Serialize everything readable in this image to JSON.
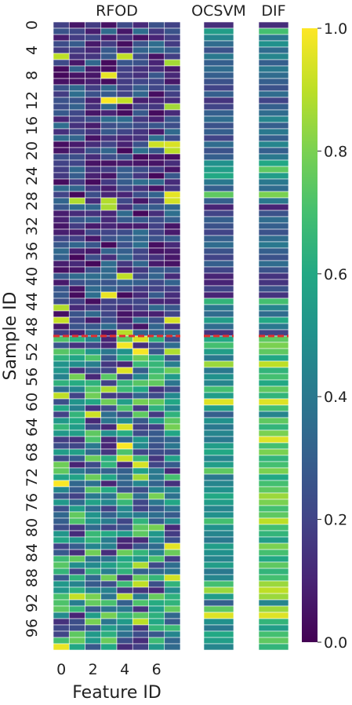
{
  "chart_data": [
    {
      "type": "heatmap",
      "title": "RFOD",
      "xlabel": "Feature ID",
      "ylabel": "Sample ID",
      "x_ticks": [
        "0",
        "2",
        "4",
        "6"
      ],
      "y_ticks": [
        "0",
        "4",
        "8",
        "12",
        "16",
        "20",
        "24",
        "28",
        "32",
        "36",
        "40",
        "44",
        "48",
        "52",
        "56",
        "60",
        "64",
        "68",
        "72",
        "76",
        "80",
        "84",
        "88",
        "92",
        "96"
      ],
      "x": [
        0,
        1,
        2,
        3,
        4,
        5,
        6,
        7
      ],
      "y": [
        0,
        99
      ],
      "z_note": "Per-sample, per-feature outlier scores on a 0–1 scale; samples 0–49 mostly low (dark purple), samples 50–99 noticeably higher (more teal/green/yellow)."
    },
    {
      "type": "heatmap",
      "title": "OCSVM",
      "series_index": 100,
      "z": [
        0.13,
        0.55,
        0.45,
        0.35,
        0.25,
        0.4,
        0.3,
        0.35,
        0.3,
        0.25,
        0.2,
        0.3,
        0.15,
        0.2,
        0.3,
        0.35,
        0.25,
        0.3,
        0.2,
        0.35,
        0.25,
        0.3,
        0.5,
        0.55,
        0.6,
        0.4,
        0.3,
        0.75,
        0.3,
        0.1,
        0.2,
        0.3,
        0.25,
        0.2,
        0.3,
        0.35,
        0.25,
        0.2,
        0.3,
        0.2,
        0.1,
        0.1,
        0.2,
        0.1,
        0.65,
        0.4,
        0.35,
        0.55,
        0.35,
        0.15,
        0.6,
        0.7,
        0.55,
        0.4,
        0.85,
        0.4,
        0.5,
        0.45,
        0.7,
        0.55,
        0.95,
        0.55,
        0.3,
        0.5,
        0.4,
        0.45,
        0.4,
        0.55,
        0.6,
        0.45,
        0.55,
        0.75,
        0.4,
        0.45,
        0.5,
        0.6,
        0.55,
        0.45,
        0.5,
        0.7,
        0.5,
        0.45,
        0.4,
        0.55,
        0.5,
        0.45,
        0.55,
        0.4,
        0.45,
        0.7,
        0.85,
        0.55,
        0.3,
        0.75,
        0.95,
        0.5,
        0.4,
        0.6,
        0.55,
        0.45
      ]
    },
    {
      "type": "heatmap",
      "title": "DIF",
      "series_index": 100,
      "z": [
        0.13,
        0.7,
        0.4,
        0.5,
        0.35,
        0.45,
        0.3,
        0.4,
        0.35,
        0.3,
        0.25,
        0.35,
        0.2,
        0.3,
        0.35,
        0.45,
        0.3,
        0.4,
        0.3,
        0.45,
        0.3,
        0.4,
        0.6,
        0.75,
        0.55,
        0.4,
        0.35,
        0.8,
        0.4,
        0.1,
        0.25,
        0.35,
        0.3,
        0.25,
        0.35,
        0.4,
        0.3,
        0.25,
        0.35,
        0.25,
        0.15,
        0.15,
        0.25,
        0.15,
        0.7,
        0.45,
        0.35,
        0.6,
        0.4,
        0.2,
        0.75,
        0.8,
        0.75,
        0.6,
        0.9,
        0.65,
        0.7,
        0.6,
        0.75,
        0.65,
        0.95,
        0.7,
        0.45,
        0.75,
        0.65,
        0.8,
        0.95,
        0.7,
        0.8,
        0.65,
        0.7,
        0.8,
        0.6,
        0.7,
        0.75,
        0.85,
        0.8,
        0.7,
        0.75,
        0.9,
        0.7,
        0.65,
        0.55,
        0.8,
        0.7,
        0.6,
        0.75,
        0.65,
        0.7,
        0.85,
        0.9,
        0.85,
        0.45,
        0.85,
        0.95,
        0.65,
        0.55,
        0.7,
        0.75,
        0.65
      ]
    }
  ],
  "colorbar": {
    "ticks": [
      "0.0",
      "0.2",
      "0.4",
      "0.6",
      "0.8",
      "1.0"
    ],
    "min": 0,
    "max": 1,
    "colormap": "viridis"
  },
  "threshold_line": {
    "after_sample": 50,
    "color": "#e3302f"
  }
}
